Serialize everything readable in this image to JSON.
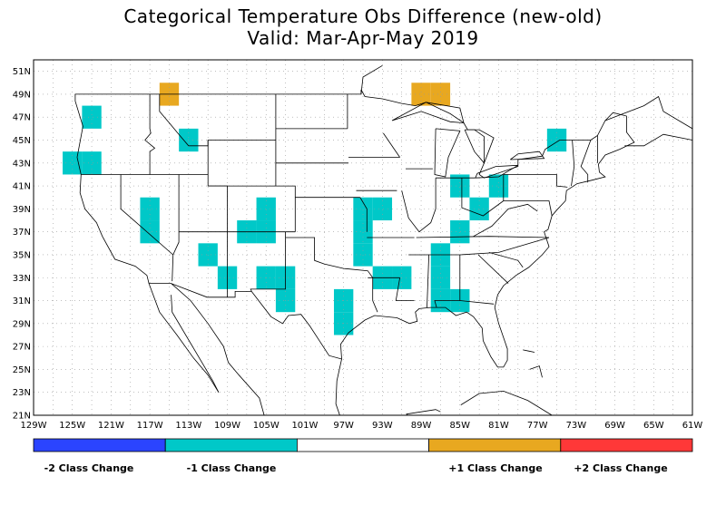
{
  "title": {
    "line1": "Categorical Temperature Obs Difference (new-old)",
    "line2": "Valid: Mar-Apr-May 2019"
  },
  "map": {
    "lon_range": [
      -129,
      -61
    ],
    "lat_range": [
      21,
      52
    ],
    "lat_ticks": [
      "51N",
      "49N",
      "47N",
      "45N",
      "43N",
      "41N",
      "39N",
      "37N",
      "35N",
      "33N",
      "31N",
      "29N",
      "27N",
      "25N",
      "23N",
      "21N"
    ],
    "lon_ticks": [
      "129W",
      "125W",
      "121W",
      "117W",
      "113W",
      "109W",
      "105W",
      "101W",
      "97W",
      "93W",
      "89W",
      "85W",
      "81W",
      "77W",
      "73W",
      "69W",
      "65W",
      "61W"
    ],
    "grid": true,
    "cells": [
      {
        "lon": -124,
        "lat": 46,
        "class": -1
      },
      {
        "lon": -126,
        "lat": 42,
        "class": -1
      },
      {
        "lon": -124,
        "lat": 42,
        "class": -1
      },
      {
        "lon": -116,
        "lat": 48,
        "class": 1
      },
      {
        "lon": -114,
        "lat": 44,
        "class": -1
      },
      {
        "lon": -118,
        "lat": 38,
        "class": -1
      },
      {
        "lon": -118,
        "lat": 36,
        "class": -1
      },
      {
        "lon": -106,
        "lat": 38,
        "class": -1
      },
      {
        "lon": -108,
        "lat": 36,
        "class": -1
      },
      {
        "lon": -106,
        "lat": 36,
        "class": -1
      },
      {
        "lon": -112,
        "lat": 34,
        "class": -1
      },
      {
        "lon": -110,
        "lat": 32,
        "class": -1
      },
      {
        "lon": -106,
        "lat": 32,
        "class": -1
      },
      {
        "lon": -104,
        "lat": 32,
        "class": -1
      },
      {
        "lon": -104,
        "lat": 30,
        "class": -1
      },
      {
        "lon": -96,
        "lat": 38,
        "class": -1
      },
      {
        "lon": -94,
        "lat": 38,
        "class": -1
      },
      {
        "lon": -96,
        "lat": 36,
        "class": -1
      },
      {
        "lon": -96,
        "lat": 34,
        "class": -1
      },
      {
        "lon": -94,
        "lat": 32,
        "class": -1
      },
      {
        "lon": -92,
        "lat": 32,
        "class": -1
      },
      {
        "lon": -98,
        "lat": 30,
        "class": -1
      },
      {
        "lon": -98,
        "lat": 28,
        "class": -1
      },
      {
        "lon": -88,
        "lat": 34,
        "class": -1
      },
      {
        "lon": -88,
        "lat": 32,
        "class": -1
      },
      {
        "lon": -88,
        "lat": 30,
        "class": -1
      },
      {
        "lon": -86,
        "lat": 30,
        "class": -1
      },
      {
        "lon": -86,
        "lat": 36,
        "class": -1
      },
      {
        "lon": -84,
        "lat": 38,
        "class": -1
      },
      {
        "lon": -86,
        "lat": 40,
        "class": -1
      },
      {
        "lon": -82,
        "lat": 40,
        "class": -1
      },
      {
        "lon": -76,
        "lat": 44,
        "class": -1
      },
      {
        "lon": -90,
        "lat": 48,
        "class": 1
      },
      {
        "lon": -88,
        "lat": 48,
        "class": 1
      }
    ]
  },
  "legend": {
    "items": [
      {
        "label": "-2 Class Change",
        "color": "#2b44ff"
      },
      {
        "label": "-1 Class Change",
        "color": "#00c8c8"
      },
      {
        "label": "",
        "color": "#ffffff"
      },
      {
        "label": "+1 Class Change",
        "color": "#e8a820"
      },
      {
        "label": "+2 Class Change",
        "color": "#ff3838"
      }
    ]
  },
  "colors": {
    "minus2": "#2b44ff",
    "minus1": "#00c8c8",
    "plus1": "#e8a820",
    "plus2": "#ff3838"
  }
}
